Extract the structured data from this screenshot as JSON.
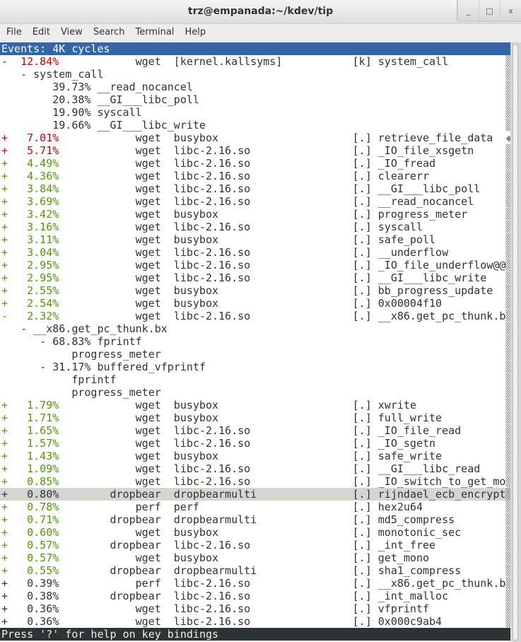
{
  "window": {
    "title": "trz@empanada:~/kdev/tip",
    "buttons": {
      "minimize": "_",
      "maximize": "□",
      "close": "x"
    }
  },
  "menu": [
    "File",
    "Edit",
    "View",
    "Search",
    "Terminal",
    "Help"
  ],
  "header": "Events: 4K cycles",
  "status": "Press '?' for help on key bindings",
  "colors": {
    "red": "#cc0000",
    "green": "#4e9a06",
    "header_bg": "#3465a4",
    "highlight_bg": "#d3d7cf",
    "status_bg": "#2e3436"
  },
  "rows": [
    {
      "fold": "-",
      "pct": "12.84%",
      "color": "red",
      "comm": "wget",
      "dso": "[kernel.kallsyms]",
      "type": "[k]",
      "sym": "system_call",
      "mark": "▒"
    },
    {
      "child": [
        {
          "col": 3,
          "text": "- system_call"
        }
      ],
      "mark": "▒"
    },
    {
      "child": [
        {
          "col": 8,
          "text": "39.73%"
        },
        {
          "col": 15,
          "text": "__read_nocancel"
        }
      ],
      "mark": "▒"
    },
    {
      "child": [
        {
          "col": 8,
          "text": "20.38%"
        },
        {
          "col": 15,
          "text": "__GI___libc_poll"
        }
      ],
      "mark": "▒"
    },
    {
      "child": [
        {
          "col": 8,
          "text": "19.90%"
        },
        {
          "col": 15,
          "text": "syscall"
        }
      ],
      "mark": "▒"
    },
    {
      "child": [
        {
          "col": 8,
          "text": "19.66%"
        },
        {
          "col": 15,
          "text": "__GI___libc_write"
        }
      ],
      "mark": "▒"
    },
    {
      "fold": "+",
      "pct": "7.01%",
      "color": "red",
      "comm": "wget",
      "dso": "busybox",
      "type": "[.]",
      "sym": "retrieve_file_data",
      "mark": "◆"
    },
    {
      "fold": "+",
      "pct": "5.71%",
      "color": "red",
      "comm": "wget",
      "dso": "libc-2.16.so",
      "type": "[.]",
      "sym": "_IO_file_xsgetn",
      "mark": "▒"
    },
    {
      "fold": "+",
      "pct": "4.49%",
      "color": "green",
      "comm": "wget",
      "dso": "libc-2.16.so",
      "type": "[.]",
      "sym": "_IO_fread",
      "mark": "▒"
    },
    {
      "fold": "+",
      "pct": "4.36%",
      "color": "green",
      "comm": "wget",
      "dso": "libc-2.16.so",
      "type": "[.]",
      "sym": "clearerr",
      "mark": "▒"
    },
    {
      "fold": "+",
      "pct": "3.84%",
      "color": "green",
      "comm": "wget",
      "dso": "libc-2.16.so",
      "type": "[.]",
      "sym": "__GI___libc_poll",
      "mark": "▒"
    },
    {
      "fold": "+",
      "pct": "3.69%",
      "color": "green",
      "comm": "wget",
      "dso": "libc-2.16.so",
      "type": "[.]",
      "sym": "__read_nocancel",
      "mark": "▒"
    },
    {
      "fold": "+",
      "pct": "3.42%",
      "color": "green",
      "comm": "wget",
      "dso": "busybox",
      "type": "[.]",
      "sym": "progress_meter",
      "mark": "▒"
    },
    {
      "fold": "+",
      "pct": "3.16%",
      "color": "green",
      "comm": "wget",
      "dso": "libc-2.16.so",
      "type": "[.]",
      "sym": "syscall",
      "mark": "▒"
    },
    {
      "fold": "+",
      "pct": "3.11%",
      "color": "green",
      "comm": "wget",
      "dso": "busybox",
      "type": "[.]",
      "sym": "safe_poll",
      "mark": "▒"
    },
    {
      "fold": "+",
      "pct": "3.04%",
      "color": "green",
      "comm": "wget",
      "dso": "libc-2.16.so",
      "type": "[.]",
      "sym": "__underflow",
      "mark": "▒"
    },
    {
      "fold": "+",
      "pct": "2.95%",
      "color": "green",
      "comm": "wget",
      "dso": "libc-2.16.so",
      "type": "[.]",
      "sym": "_IO_file_underflow@@",
      "mark": "▒"
    },
    {
      "fold": "+",
      "pct": "2.95%",
      "color": "green",
      "comm": "wget",
      "dso": "libc-2.16.so",
      "type": "[.]",
      "sym": "__GI___libc_write",
      "mark": "▒"
    },
    {
      "fold": "+",
      "pct": "2.55%",
      "color": "green",
      "comm": "wget",
      "dso": "busybox",
      "type": "[.]",
      "sym": "bb_progress_update",
      "mark": "▒"
    },
    {
      "fold": "+",
      "pct": "2.54%",
      "color": "green",
      "comm": "wget",
      "dso": "busybox",
      "type": "[.]",
      "sym": "0x00004f10",
      "mark": "▒"
    },
    {
      "fold": "-",
      "pct": "2.32%",
      "color": "green",
      "comm": "wget",
      "dso": "libc-2.16.so",
      "type": "[.]",
      "sym": "__x86.get_pc_thunk.b",
      "mark": "▒"
    },
    {
      "child": [
        {
          "col": 3,
          "text": "- __x86.get_pc_thunk.bx"
        }
      ],
      "mark": "▒"
    },
    {
      "child": [
        {
          "col": 6,
          "text": "- 68.83% fprintf"
        }
      ],
      "mark": "▒"
    },
    {
      "child": [
        {
          "col": 11,
          "text": "progress_meter"
        }
      ],
      "mark": "▒"
    },
    {
      "child": [
        {
          "col": 6,
          "text": "- 31.17% buffered_vfprintf"
        }
      ],
      "mark": "▒"
    },
    {
      "child": [
        {
          "col": 11,
          "text": "fprintf"
        }
      ],
      "mark": "▒"
    },
    {
      "child": [
        {
          "col": 11,
          "text": "progress_meter"
        }
      ],
      "mark": "▒"
    },
    {
      "fold": "+",
      "pct": "1.79%",
      "color": "green",
      "comm": "wget",
      "dso": "busybox",
      "type": "[.]",
      "sym": "xwrite",
      "mark": "▒"
    },
    {
      "fold": "+",
      "pct": "1.71%",
      "color": "green",
      "comm": "wget",
      "dso": "busybox",
      "type": "[.]",
      "sym": "full_write",
      "mark": "▒"
    },
    {
      "fold": "+",
      "pct": "1.65%",
      "color": "green",
      "comm": "wget",
      "dso": "libc-2.16.so",
      "type": "[.]",
      "sym": "_IO_file_read",
      "mark": "▒"
    },
    {
      "fold": "+",
      "pct": "1.57%",
      "color": "green",
      "comm": "wget",
      "dso": "libc-2.16.so",
      "type": "[.]",
      "sym": "_IO_sgetn",
      "mark": "▒"
    },
    {
      "fold": "+",
      "pct": "1.43%",
      "color": "green",
      "comm": "wget",
      "dso": "busybox",
      "type": "[.]",
      "sym": "safe_write",
      "mark": "▒"
    },
    {
      "fold": "+",
      "pct": "1.09%",
      "color": "green",
      "comm": "wget",
      "dso": "libc-2.16.so",
      "type": "[.]",
      "sym": "__GI___libc_read",
      "mark": "▒"
    },
    {
      "fold": "+",
      "pct": "0.85%",
      "color": "green",
      "comm": "wget",
      "dso": "libc-2.16.so",
      "type": "[.]",
      "sym": "_IO_switch_to_get_mo",
      "mark": "▒"
    },
    {
      "fold": "+",
      "pct": "0.80%",
      "color": "",
      "comm": "dropbear",
      "dso": "dropbearmulti",
      "type": "[.]",
      "sym": "rijndael_ecb_encrypt",
      "mark": "▒",
      "selected": true
    },
    {
      "fold": "+",
      "pct": "0.78%",
      "color": "green",
      "comm": "perf",
      "dso": "perf",
      "type": "[.]",
      "sym": "hex2u64",
      "mark": "▒"
    },
    {
      "fold": "+",
      "pct": "0.71%",
      "color": "green",
      "comm": "dropbear",
      "dso": "dropbearmulti",
      "type": "[.]",
      "sym": "md5_compress",
      "mark": "▒"
    },
    {
      "fold": "+",
      "pct": "0.60%",
      "color": "green",
      "comm": "wget",
      "dso": "busybox",
      "type": "[.]",
      "sym": "monotonic_sec",
      "mark": "▒"
    },
    {
      "fold": "+",
      "pct": "0.57%",
      "color": "green",
      "comm": "dropbear",
      "dso": "libc-2.16.so",
      "type": "[.]",
      "sym": "_int_free",
      "mark": "▒"
    },
    {
      "fold": "+",
      "pct": "0.57%",
      "color": "green",
      "comm": "wget",
      "dso": "busybox",
      "type": "[.]",
      "sym": "get_mono",
      "mark": "▒"
    },
    {
      "fold": "+",
      "pct": "0.55%",
      "color": "green",
      "comm": "dropbear",
      "dso": "dropbearmulti",
      "type": "[.]",
      "sym": "sha1_compress",
      "mark": "▒"
    },
    {
      "fold": "+",
      "pct": "0.39%",
      "color": "",
      "comm": "perf",
      "dso": "libc-2.16.so",
      "type": "[.]",
      "sym": "__x86.get_pc_thunk.b",
      "mark": "▒"
    },
    {
      "fold": "+",
      "pct": "0.38%",
      "color": "",
      "comm": "dropbear",
      "dso": "libc-2.16.so",
      "type": "[.]",
      "sym": "_int_malloc",
      "mark": "▒"
    },
    {
      "fold": "+",
      "pct": "0.36%",
      "color": "",
      "comm": "wget",
      "dso": "libc-2.16.so",
      "type": "[.]",
      "sym": "vfprintf",
      "mark": "▒"
    },
    {
      "fold": "+",
      "pct": "0.36%",
      "color": "",
      "comm": "wget",
      "dso": "libc-2.16.so",
      "type": "[.]",
      "sym": "0x000c9ab4",
      "mark": "▒"
    }
  ]
}
